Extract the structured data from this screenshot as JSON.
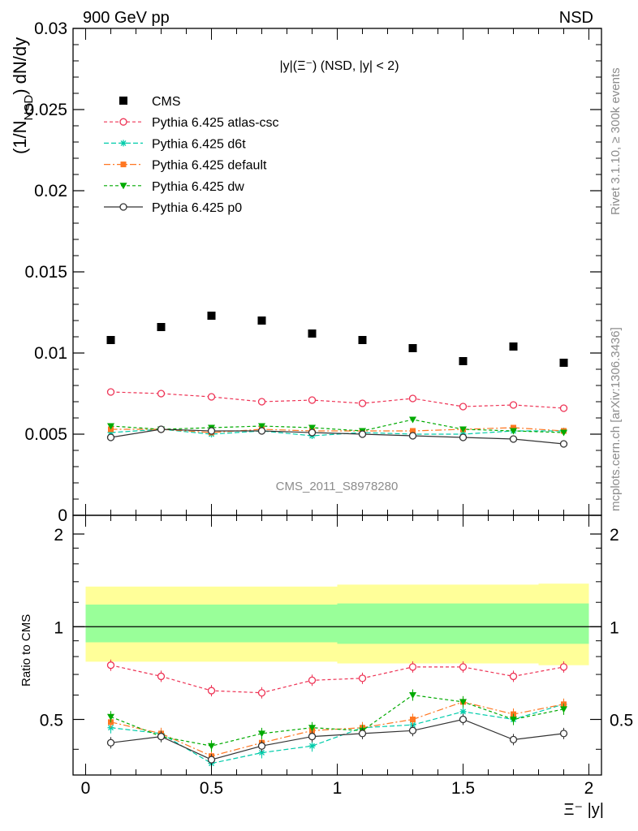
{
  "header": {
    "left": "900 GeV pp",
    "right": "NSD"
  },
  "side_text": {
    "top": "Rivet 3.1.10, ≥ 300k events",
    "bottom": "mcplots.cern.ch [arXiv:1306.3436]"
  },
  "watermark": "CMS_2011_S8978280",
  "plot_title": {
    "main": "|y|(Ξ⁻) (NSD, |y| < 2)"
  },
  "axes": {
    "main_ylabel": "(1/Nₓₛₓ) dN/dy",
    "main_ylabel_a": "(1/N",
    "main_ylabel_sub": "NSD",
    "main_ylabel_b": ") dN/dy",
    "ratio_ylabel": "Ratio to CMS",
    "xlabel": "Ξ⁻ |y|",
    "main_yticks": [
      "0",
      "0.005",
      "0.01",
      "0.015",
      "0.02",
      "0.025",
      "0.03"
    ],
    "ratio_yticks": [
      "0.5",
      "1",
      "2"
    ],
    "xticks": [
      "0",
      "0.5",
      "1",
      "1.5",
      "2"
    ]
  },
  "colors": {
    "CMS": "#000000",
    "atlas_csc": "#ee3355",
    "d6t": "#00ccaa",
    "default": "#ff7722",
    "dw": "#00aa00",
    "p0": "#333333",
    "band_outer": "#ffff99",
    "band_inner": "#99ff99"
  },
  "chart_data": [
    {
      "type": "scatter",
      "title": "|y|(Ξ⁻) (NSD, |y| < 2)",
      "xlabel": "Ξ⁻ |y|",
      "ylabel": "(1/N_NSD) dN/dy",
      "xlim": [
        -0.05,
        2.05
      ],
      "ylim": [
        0,
        0.03
      ],
      "legend_position": "top-left",
      "x": [
        0.1,
        0.3,
        0.5,
        0.7,
        0.9,
        1.1,
        1.3,
        1.5,
        1.7,
        1.9
      ],
      "series": [
        {
          "name": "CMS",
          "key": "CMS",
          "marker": "square",
          "dash": "",
          "values": [
            0.0108,
            0.0116,
            0.0123,
            0.012,
            0.0112,
            0.0108,
            0.0103,
            0.0095,
            0.0104,
            0.0094
          ]
        },
        {
          "name": "Pythia 6.425 atlas-csc",
          "key": "atlas_csc",
          "marker": "open-circle",
          "dash": "4,3",
          "values": [
            0.0076,
            0.0075,
            0.0073,
            0.007,
            0.0071,
            0.0069,
            0.0072,
            0.0067,
            0.0068,
            0.0066
          ]
        },
        {
          "name": "Pythia 6.425 d6t",
          "key": "d6t",
          "marker": "star",
          "dash": "6,3",
          "values": [
            0.0051,
            0.0053,
            0.005,
            0.0052,
            0.0049,
            0.0051,
            0.005,
            0.005,
            0.0052,
            0.0052
          ]
        },
        {
          "name": "Pythia 6.425 default",
          "key": "default",
          "marker": "filled-square",
          "dash": "8,3,2,3",
          "values": [
            0.0053,
            0.0053,
            0.0051,
            0.0053,
            0.0052,
            0.0052,
            0.0052,
            0.0053,
            0.0054,
            0.0052
          ]
        },
        {
          "name": "Pythia 6.425 dw",
          "key": "dw",
          "marker": "triangle-down",
          "dash": "4,3",
          "values": [
            0.0055,
            0.0053,
            0.0054,
            0.0055,
            0.0054,
            0.0052,
            0.0059,
            0.0053,
            0.0052,
            0.0051
          ]
        },
        {
          "name": "Pythia 6.425 p0",
          "key": "p0",
          "marker": "open-circle",
          "dash": "",
          "values": [
            0.0048,
            0.0053,
            0.0052,
            0.0052,
            0.0051,
            0.005,
            0.0049,
            0.0048,
            0.0047,
            0.0044
          ]
        }
      ]
    },
    {
      "type": "scatter",
      "title": "",
      "xlabel": "Ξ⁻ |y|",
      "ylabel": "Ratio to CMS",
      "xlim": [
        -0.05,
        2.05
      ],
      "ylim": [
        0.33,
        2.3
      ],
      "yscale": "log",
      "reference_line": 1,
      "bands": {
        "x_edges": [
          0.0,
          1.0,
          1.8,
          2.0
        ],
        "outer": [
          [
            0.77,
            1.35
          ],
          [
            0.76,
            1.37
          ],
          [
            0.75,
            1.38
          ],
          [
            0.73,
            1.4
          ]
        ],
        "inner": [
          [
            0.89,
            1.18
          ],
          [
            0.88,
            1.19
          ],
          [
            0.88,
            1.19
          ],
          [
            0.87,
            1.21
          ]
        ]
      },
      "x": [
        0.1,
        0.3,
        0.5,
        0.7,
        0.9,
        1.1,
        1.3,
        1.5,
        1.7,
        1.9
      ],
      "series": [
        {
          "name": "Pythia 6.425 atlas-csc",
          "key": "atlas_csc",
          "marker": "open-circle",
          "dash": "4,3",
          "values": [
            0.75,
            0.69,
            0.62,
            0.61,
            0.67,
            0.68,
            0.74,
            0.74,
            0.69,
            0.74
          ]
        },
        {
          "name": "Pythia 6.425 d6t",
          "key": "d6t",
          "marker": "star",
          "dash": "6,3",
          "values": [
            0.47,
            0.45,
            0.36,
            0.39,
            0.41,
            0.47,
            0.48,
            0.53,
            0.5,
            0.56
          ]
        },
        {
          "name": "Pythia 6.425 default",
          "key": "default",
          "marker": "filled-square",
          "dash": "8,3,2,3",
          "values": [
            0.49,
            0.45,
            0.38,
            0.42,
            0.46,
            0.47,
            0.5,
            0.57,
            0.52,
            0.56
          ]
        },
        {
          "name": "Pythia 6.425 dw",
          "key": "dw",
          "marker": "triangle-down",
          "dash": "4,3",
          "values": [
            0.51,
            0.44,
            0.41,
            0.45,
            0.47,
            0.46,
            0.6,
            0.57,
            0.5,
            0.54
          ]
        },
        {
          "name": "Pythia 6.425 p0",
          "key": "p0",
          "marker": "open-circle",
          "dash": "",
          "values": [
            0.42,
            0.44,
            0.37,
            0.41,
            0.44,
            0.45,
            0.46,
            0.5,
            0.43,
            0.45
          ]
        }
      ]
    }
  ]
}
